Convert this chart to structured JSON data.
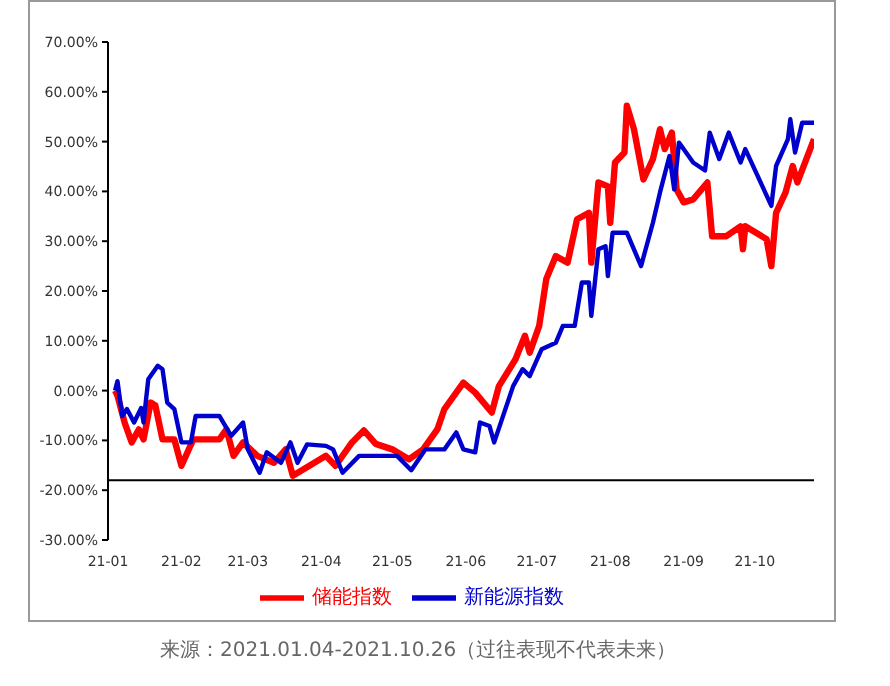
{
  "chart_data": {
    "type": "line",
    "annotations": [
      "来源：2021.01.04-2021.10.26（过往表现不代表未来）"
    ],
    "xlim": [
      "2021-01-01",
      "2021-10-26"
    ],
    "xticks": [
      {
        "value": "2021-01-01",
        "label": "21-01"
      },
      {
        "value": "2021-02-01",
        "label": "21-02"
      },
      {
        "value": "2021-03-01",
        "label": "21-03"
      },
      {
        "value": "2021-04-01",
        "label": "21-04"
      },
      {
        "value": "2021-05-01",
        "label": "21-05"
      },
      {
        "value": "2021-06-01",
        "label": "21-06"
      },
      {
        "value": "2021-07-01",
        "label": "21-07"
      },
      {
        "value": "2021-08-01",
        "label": "21-08"
      },
      {
        "value": "2021-09-01",
        "label": "21-09"
      },
      {
        "value": "2021-10-01",
        "label": "21-10"
      }
    ],
    "ylim": [
      -30,
      70
    ],
    "yticks": [
      {
        "value": -30,
        "label": "-30.00%"
      },
      {
        "value": -20,
        "label": "-20.00%"
      },
      {
        "value": -10,
        "label": "-10.00%"
      },
      {
        "value": 0,
        "label": "0.00%"
      },
      {
        "value": 10,
        "label": "10.00%"
      },
      {
        "value": 20,
        "label": "20.00%"
      },
      {
        "value": 30,
        "label": "30.00%"
      },
      {
        "value": 40,
        "label": "40.00%"
      },
      {
        "value": 50,
        "label": "50.00%"
      },
      {
        "value": 60,
        "label": "60.00%"
      },
      {
        "value": 70,
        "label": "70.00%"
      }
    ],
    "ref_lines": [
      {
        "axis": "y",
        "value": -18,
        "color": "#000000"
      }
    ],
    "grid": false,
    "legend": "bottom",
    "marker": "none",
    "line_style": "solid",
    "series": [
      {
        "name": "储能指数",
        "color": "#ff0000",
        "x": [
          "2021-01-04",
          "2021-01-05",
          "2021-01-08",
          "2021-01-11",
          "2021-01-14",
          "2021-01-16",
          "2021-01-19",
          "2021-01-21",
          "2021-01-24",
          "2021-01-29",
          "2021-02-01",
          "2021-02-06",
          "2021-02-17",
          "2021-02-20",
          "2021-02-23",
          "2021-02-27",
          "2021-03-05",
          "2021-03-12",
          "2021-03-17",
          "2021-03-20",
          "2021-03-27",
          "2021-04-03",
          "2021-04-07",
          "2021-04-14",
          "2021-04-19",
          "2021-04-24",
          "2021-05-01",
          "2021-05-08",
          "2021-05-14",
          "2021-05-20",
          "2021-05-23",
          "2021-05-31",
          "2021-06-05",
          "2021-06-12",
          "2021-06-15",
          "2021-06-22",
          "2021-06-26",
          "2021-06-28",
          "2021-07-02",
          "2021-07-05",
          "2021-07-09",
          "2021-07-14",
          "2021-07-18",
          "2021-07-23",
          "2021-07-24",
          "2021-07-27",
          "2021-07-31",
          "2021-08-01",
          "2021-08-03",
          "2021-08-07",
          "2021-08-08",
          "2021-08-11",
          "2021-08-15",
          "2021-08-19",
          "2021-08-22",
          "2021-08-24",
          "2021-08-27",
          "2021-08-29",
          "2021-09-01",
          "2021-09-05",
          "2021-09-11",
          "2021-09-13",
          "2021-09-19",
          "2021-09-25",
          "2021-09-26",
          "2021-09-27",
          "2021-10-06",
          "2021-10-08",
          "2021-10-10",
          "2021-10-14",
          "2021-10-17",
          "2021-10-19",
          "2021-10-26"
        ],
        "values": [
          0,
          -1,
          -6.4,
          -10.4,
          -7.8,
          -9.8,
          -2.4,
          -3,
          -9.8,
          -9.8,
          -15.1,
          -9.8,
          -9.8,
          -7.8,
          -13.1,
          -10.4,
          -13.1,
          -14.5,
          -11.8,
          -17.1,
          -15.1,
          -13.1,
          -15.1,
          -10.4,
          -8,
          -10.7,
          -11.8,
          -13.8,
          -11.8,
          -7.8,
          -3.7,
          1.6,
          -0.4,
          -4.4,
          0.9,
          6.3,
          11,
          7.6,
          13,
          22.4,
          27,
          25.7,
          34.4,
          35.7,
          25.7,
          41.8,
          41,
          33.7,
          45.8,
          47.8,
          57.2,
          52.5,
          42.4,
          46.5,
          52.5,
          48.5,
          51.8,
          40.4,
          37.8,
          38.4,
          41.8,
          31,
          31,
          33,
          28.4,
          33,
          30.4,
          25,
          35.7,
          39.8,
          45.1,
          41.8,
          50.5
        ]
      },
      {
        "name": "新能源指数",
        "color": "#0000cc",
        "x": [
          "2021-01-04",
          "2021-01-05",
          "2021-01-07",
          "2021-01-09",
          "2021-01-12",
          "2021-01-15",
          "2021-01-16",
          "2021-01-18",
          "2021-01-22",
          "2021-01-24",
          "2021-01-26",
          "2021-01-29",
          "2021-02-01",
          "2021-02-05",
          "2021-02-07",
          "2021-02-17",
          "2021-02-22",
          "2021-02-27",
          "2021-03-01",
          "2021-03-06",
          "2021-03-09",
          "2021-03-15",
          "2021-03-19",
          "2021-03-22",
          "2021-03-26",
          "2021-04-03",
          "2021-04-06",
          "2021-04-10",
          "2021-04-17",
          "2021-04-24",
          "2021-05-03",
          "2021-05-09",
          "2021-05-15",
          "2021-05-17",
          "2021-05-23",
          "2021-05-28",
          "2021-05-31",
          "2021-06-05",
          "2021-06-07",
          "2021-06-11",
          "2021-06-13",
          "2021-06-21",
          "2021-06-25",
          "2021-06-28",
          "2021-07-03",
          "2021-07-09",
          "2021-07-12",
          "2021-07-17",
          "2021-07-20",
          "2021-07-23",
          "2021-07-24",
          "2021-07-27",
          "2021-07-30",
          "2021-07-31",
          "2021-08-02",
          "2021-08-08",
          "2021-08-14",
          "2021-08-19",
          "2021-08-22",
          "2021-08-26",
          "2021-08-28",
          "2021-08-30",
          "2021-09-05",
          "2021-09-10",
          "2021-09-12",
          "2021-09-16",
          "2021-09-20",
          "2021-09-25",
          "2021-09-27",
          "2021-10-08",
          "2021-10-10",
          "2021-10-15",
          "2021-10-16",
          "2021-10-18",
          "2021-10-21",
          "2021-10-26"
        ],
        "values": [
          0,
          1.9,
          -5.1,
          -3.7,
          -6.4,
          -3.5,
          -6.4,
          2.3,
          5,
          4.3,
          -2.4,
          -3.7,
          -10.4,
          -10.4,
          -5.1,
          -5.1,
          -9.1,
          -6.4,
          -11.8,
          -16.5,
          -12.4,
          -14.5,
          -10.4,
          -14.5,
          -10.8,
          -11.1,
          -11.8,
          -16.5,
          -13.1,
          -13.1,
          -13.1,
          -16,
          -11.8,
          -11.8,
          -11.8,
          -8.4,
          -11.8,
          -12.4,
          -6.4,
          -7.1,
          -10.4,
          0.9,
          4.3,
          2.9,
          8.3,
          9.6,
          13,
          13,
          21.7,
          21.7,
          15,
          28.4,
          29,
          23,
          31.7,
          31.7,
          25,
          33.7,
          39.8,
          47.1,
          40.4,
          49.8,
          45.8,
          44.2,
          51.8,
          46.5,
          51.8,
          45.8,
          48.5,
          37.1,
          45.1,
          50.5,
          54.5,
          47.8,
          53.8,
          53.8
        ]
      }
    ]
  }
}
